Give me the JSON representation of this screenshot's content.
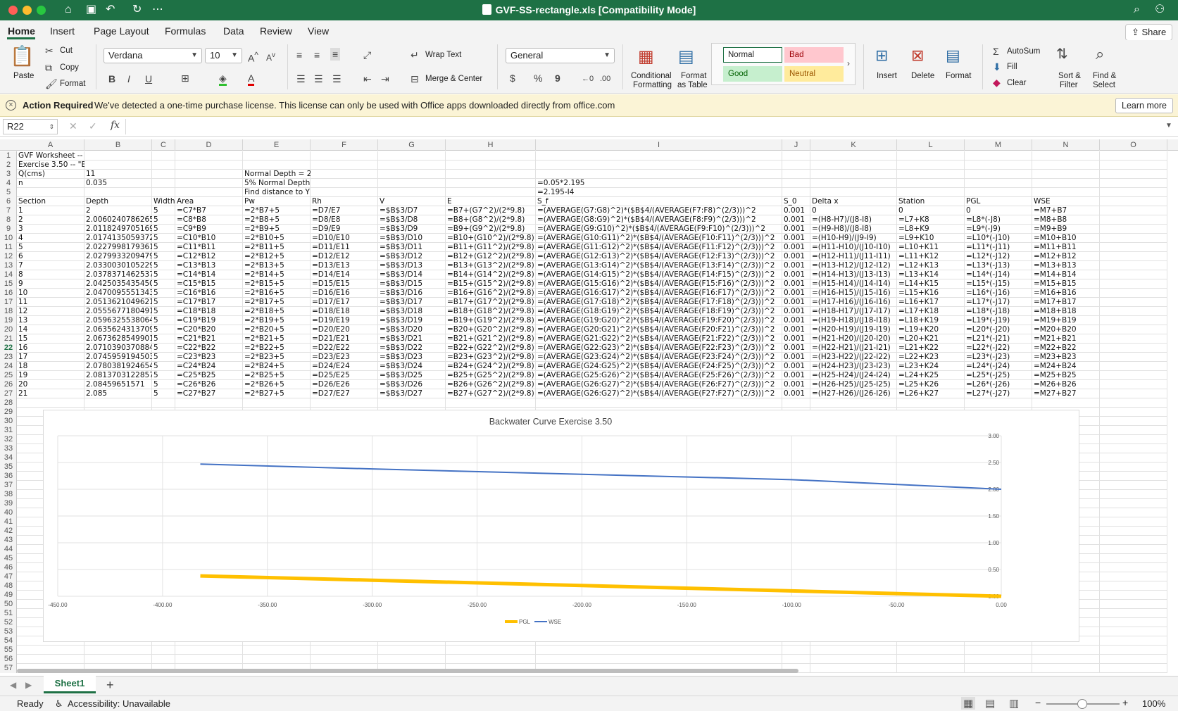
{
  "window": {
    "title": "GVF-SS-rectangle.xls  [Compatibility Mode]",
    "controls": [
      "close",
      "minimize",
      "zoom"
    ]
  },
  "menu": {
    "items": [
      "Home",
      "Insert",
      "Page Layout",
      "Formulas",
      "Data",
      "Review",
      "View"
    ],
    "active": "Home",
    "share_label": "Share"
  },
  "ribbon": {
    "paste": "Paste",
    "cut": "Cut",
    "copy": "Copy",
    "format_painter": "Format",
    "font_name": "Verdana",
    "font_size": "10",
    "wrap_text": "Wrap Text",
    "merge_center": "Merge & Center",
    "number_format": "General",
    "conditional_formatting": [
      "Conditional",
      "Formatting"
    ],
    "format_as_table": [
      "Format",
      "as Table"
    ],
    "styles": [
      {
        "label": "Normal",
        "bg": "#ffffff",
        "border": "#1e7145",
        "color": "#222222"
      },
      {
        "label": "Bad",
        "bg": "#ffc7ce",
        "border": "#ffc7ce",
        "color": "#9c0006"
      },
      {
        "label": "Good",
        "bg": "#c6efce",
        "border": "#c6efce",
        "color": "#006100"
      },
      {
        "label": "Neutral",
        "bg": "#ffeb9c",
        "border": "#ffeb9c",
        "color": "#9c5700"
      }
    ],
    "insert": "Insert",
    "delete": "Delete",
    "format": "Format",
    "autosum": "AutoSum",
    "fill": "Fill",
    "clear": "Clear",
    "sort_filter": [
      "Sort &",
      "Filter"
    ],
    "find_select": [
      "Find &",
      "Select"
    ]
  },
  "infobar": {
    "title": "Action Required",
    "message": "We've detected a one-time purchase license. This license can only be used with Office apps downloaded directly from office.com",
    "button": "Learn more"
  },
  "formula_bar": {
    "name_box": "R22",
    "fx": "fx",
    "formula": ""
  },
  "sheet": {
    "columns": [
      "A",
      "B",
      "C",
      "D",
      "E",
      "F",
      "G",
      "H",
      "I",
      "J",
      "K",
      "L",
      "M",
      "N",
      "O"
    ],
    "row_count": 57,
    "selected_row": 22,
    "rows": [
      {
        "r": 1,
        "c": {
          "A": "GVF Worksheet --"
        }
      },
      {
        "r": 2,
        "c": {
          "A": "Exercise 3.50 -- \"E"
        }
      },
      {
        "r": 3,
        "c": {
          "A": "Q(cms)",
          "B": "11",
          "E": "Normal Depth = 2"
        }
      },
      {
        "r": 4,
        "c": {
          "A": "n",
          "B": "0.035",
          "E": "5% Normal Depth",
          "I": "=0.05*2.195"
        }
      },
      {
        "r": 5,
        "c": {
          "E": "Find distance to Y",
          "I": "=2.195-I4"
        }
      },
      {
        "r": 6,
        "c": {
          "A": "Section",
          "B": "Depth",
          "C": "Width",
          "D": "Area",
          "E": "Pw",
          "F": "Rh",
          "G": "V",
          "H": "E",
          "I": "S_f",
          "J": "S_0",
          "K": "Delta x",
          "L": "Station",
          "M": "PGL",
          "N": "WSE"
        }
      },
      {
        "r": 7,
        "c": {
          "A": "1",
          "B": "2",
          "C": "5",
          "D": "=C7*B7",
          "E": "=2*B7+5",
          "F": "=D7/E7",
          "G": "=$B$3/D7",
          "H": "=B7+(G7^2)/(2*9.8)",
          "I": "=(AVERAGE(G7:G8)^2)*($B$4/(AVERAGE(F7:F8)^(2/3)))^2",
          "J": "0.001",
          "K": "0",
          "L": "0",
          "M": "0",
          "N": "=M7+B7"
        }
      },
      {
        "r": 8,
        "c": {
          "A": "2",
          "B": "2.0060240786265",
          "C": "5",
          "D": "=C8*B8",
          "E": "=2*B8+5",
          "F": "=D8/E8",
          "G": "=$B$3/D8",
          "H": "=B8+(G8^2)/(2*9.8)",
          "I": "=(AVERAGE(G8:G9)^2)*($B$4/(AVERAGE(F8:F9)^(2/3)))^2",
          "J": "0.001",
          "K": "=(H8-H7)/(J8-I8)",
          "L": "=L7+K8",
          "M": "=L8*(-J8)",
          "N": "=M8+B8"
        }
      },
      {
        "r": 9,
        "c": {
          "A": "3",
          "B": "2.0118249705169",
          "C": "5",
          "D": "=C9*B9",
          "E": "=2*B9+5",
          "F": "=D9/E9",
          "G": "=$B$3/D9",
          "H": "=B9+(G9^2)/(2*9.8)",
          "I": "=(AVERAGE(G9:G10)^2)*($B$4/(AVERAGE(F9:F10)^(2/3)))^2",
          "J": "0.001",
          "K": "=(H9-H8)/(J8-I8)",
          "L": "=L8+K9",
          "M": "=L9*(-J9)",
          "N": "=M9+B9"
        }
      },
      {
        "r": 10,
        "c": {
          "A": "4",
          "B": "2.0174135059372",
          "C": "5",
          "D": "=C10*B10",
          "E": "=2*B10+5",
          "F": "=D10/E10",
          "G": "=$B$3/D10",
          "H": "=B10+(G10^2)/(2*9.8)",
          "I": "=(AVERAGE(G10:G11)^2)*($B$4/(AVERAGE(F10:F11)^(2/3)))^2",
          "J": "0.001",
          "K": "=(H10-H9)/(J9-I9)",
          "L": "=L9+K10",
          "M": "=L10*(-J10)",
          "N": "=M10+B10"
        }
      },
      {
        "r": 11,
        "c": {
          "A": "5",
          "B": "2.0227998179361",
          "C": "5",
          "D": "=C11*B11",
          "E": "=2*B11+5",
          "F": "=D11/E11",
          "G": "=$B$3/D11",
          "H": "=B11+(G11^2)/(2*9.8)",
          "I": "=(AVERAGE(G11:G12)^2)*($B$4/(AVERAGE(F11:F12)^(2/3)))^2",
          "J": "0.001",
          "K": "=(H11-H10)/(J10-I10)",
          "L": "=L10+K11",
          "M": "=L11*(-J11)",
          "N": "=M11+B11"
        }
      },
      {
        "r": 12,
        "c": {
          "A": "6",
          "B": "2.0279933209479",
          "C": "5",
          "D": "=C12*B12",
          "E": "=2*B12+5",
          "F": "=D12/E12",
          "G": "=$B$3/D12",
          "H": "=B12+(G12^2)/(2*9.8)",
          "I": "=(AVERAGE(G12:G13)^2)*($B$4/(AVERAGE(F12:F13)^(2/3)))^2",
          "J": "0.001",
          "K": "=(H12-H11)/(J11-I11)",
          "L": "=L11+K12",
          "M": "=L12*(-J12)",
          "N": "=M12+B12"
        }
      },
      {
        "r": 13,
        "c": {
          "A": "7",
          "B": "2.0330030105229",
          "C": "5",
          "D": "=C13*B13",
          "E": "=2*B13+5",
          "F": "=D13/E13",
          "G": "=$B$3/D13",
          "H": "=B13+(G13^2)/(2*9.8)",
          "I": "=(AVERAGE(G13:G14)^2)*($B$4/(AVERAGE(F13:F14)^(2/3)))^2",
          "J": "0.001",
          "K": "=(H13-H12)/(J12-I12)",
          "L": "=L12+K13",
          "M": "=L13*(-J13)",
          "N": "=M13+B13"
        }
      },
      {
        "r": 14,
        "c": {
          "A": "8",
          "B": "2.0378371462537",
          "C": "5",
          "D": "=C14*B14",
          "E": "=2*B14+5",
          "F": "=D14/E14",
          "G": "=$B$3/D14",
          "H": "=B14+(G14^2)/(2*9.8)",
          "I": "=(AVERAGE(G14:G15)^2)*($B$4/(AVERAGE(F14:F15)^(2/3)))^2",
          "J": "0.001",
          "K": "=(H14-H13)/(J13-I13)",
          "L": "=L13+K14",
          "M": "=L14*(-J14)",
          "N": "=M14+B14"
        }
      },
      {
        "r": 15,
        "c": {
          "A": "9",
          "B": "2.0425035435450",
          "C": "5",
          "D": "=C15*B15",
          "E": "=2*B15+5",
          "F": "=D15/E15",
          "G": "=$B$3/D15",
          "H": "=B15+(G15^2)/(2*9.8)",
          "I": "=(AVERAGE(G15:G16)^2)*($B$4/(AVERAGE(F15:F16)^(2/3)))^2",
          "J": "0.001",
          "K": "=(H15-H14)/(J14-I14)",
          "L": "=L14+K15",
          "M": "=L15*(-J15)",
          "N": "=M15+B15"
        }
      },
      {
        "r": 16,
        "c": {
          "A": "10",
          "B": "2.0470095551343",
          "C": "5",
          "D": "=C16*B16",
          "E": "=2*B16+5",
          "F": "=D16/E16",
          "G": "=$B$3/D16",
          "H": "=B16+(G16^2)/(2*9.8)",
          "I": "=(AVERAGE(G16:G17)^2)*($B$4/(AVERAGE(F16:F17)^(2/3)))^2",
          "J": "0.001",
          "K": "=(H16-H15)/(J15-I16)",
          "L": "=L15+K16",
          "M": "=L16*(-J16)",
          "N": "=M16+B16"
        }
      },
      {
        "r": 17,
        "c": {
          "A": "11",
          "B": "2.0513621049621",
          "C": "5",
          "D": "=C17*B17",
          "E": "=2*B17+5",
          "F": "=D17/E17",
          "G": "=$B$3/D17",
          "H": "=B17+(G17^2)/(2*9.8)",
          "I": "=(AVERAGE(G17:G18)^2)*($B$4/(AVERAGE(F17:F18)^(2/3)))^2",
          "J": "0.001",
          "K": "=(H17-H16)/(J16-I16)",
          "L": "=L16+K17",
          "M": "=L17*(-J17)",
          "N": "=M17+B17"
        }
      },
      {
        "r": 18,
        "c": {
          "A": "12",
          "B": "2.0555677180491",
          "C": "5",
          "D": "=C18*B18",
          "E": "=2*B18+5",
          "F": "=D18/E18",
          "G": "=$B$3/D18",
          "H": "=B18+(G18^2)/(2*9.8)",
          "I": "=(AVERAGE(G18:G19)^2)*($B$4/(AVERAGE(F18:F19)^(2/3)))^2",
          "J": "0.001",
          "K": "=(H18-H17)/(J17-I17)",
          "L": "=L17+K18",
          "M": "=L18*(-J18)",
          "N": "=M18+B18"
        }
      },
      {
        "r": 19,
        "c": {
          "A": "13",
          "B": "2.0596325538064",
          "C": "5",
          "D": "=C19*B19",
          "E": "=2*B19+5",
          "F": "=D19/E19",
          "G": "=$B$3/D19",
          "H": "=B19+(G19^2)/(2*9.8)",
          "I": "=(AVERAGE(G19:G20)^2)*($B$4/(AVERAGE(F19:F20)^(2/3)))^2",
          "J": "0.001",
          "K": "=(H19-H18)/(J18-I18)",
          "L": "=L18+K19",
          "M": "=L19*(-J19)",
          "N": "=M19+B19"
        }
      },
      {
        "r": 20,
        "c": {
          "A": "14",
          "B": "2.0635624313709",
          "C": "5",
          "D": "=C20*B20",
          "E": "=2*B20+5",
          "F": "=D20/E20",
          "G": "=$B$3/D20",
          "H": "=B20+(G20^2)/(2*9.8)",
          "I": "=(AVERAGE(G20:G21)^2)*($B$4/(AVERAGE(F20:F21)^(2/3)))^2",
          "J": "0.001",
          "K": "=(H20-H19)/(J19-I19)",
          "L": "=L19+K20",
          "M": "=L20*(-J20)",
          "N": "=M20+B20"
        }
      },
      {
        "r": 21,
        "c": {
          "A": "15",
          "B": "2.0673628549901",
          "C": "5",
          "D": "=C21*B21",
          "E": "=2*B21+5",
          "F": "=D21/E21",
          "G": "=$B$3/D21",
          "H": "=B21+(G21^2)/(2*9.8)",
          "I": "=(AVERAGE(G21:G22)^2)*($B$4/(AVERAGE(F21:F22)^(2/3)))^2",
          "J": "0.001",
          "K": "=(H21-H20)/(J20-I20)",
          "L": "=L20+K21",
          "M": "=L21*(-J21)",
          "N": "=M21+B21"
        }
      },
      {
        "r": 22,
        "c": {
          "A": "16",
          "B": "2.0710390370884",
          "C": "5",
          "D": "=C22*B22",
          "E": "=2*B22+5",
          "F": "=D22/E22",
          "G": "=$B$3/D22",
          "H": "=B22+(G22^2)/(2*9.8)",
          "I": "=(AVERAGE(G22:G23)^2)*($B$4/(AVERAGE(F22:F23)^(2/3)))^2",
          "J": "0.001",
          "K": "=(H22-H21)/(J21-I21)",
          "L": "=L21+K22",
          "M": "=L22*(-J22)",
          "N": "=M22+B22"
        }
      },
      {
        "r": 23,
        "c": {
          "A": "17",
          "B": "2.0745959194503",
          "C": "5",
          "D": "=C23*B23",
          "E": "=2*B23+5",
          "F": "=D23/E23",
          "G": "=$B$3/D23",
          "H": "=B23+(G23^2)/(2*9.8)",
          "I": "=(AVERAGE(G23:G24)^2)*($B$4/(AVERAGE(F23:F24)^(2/3)))^2",
          "J": "0.001",
          "K": "=(H23-H22)/(J22-I22)",
          "L": "=L22+K23",
          "M": "=L23*(-J23)",
          "N": "=M23+B23"
        }
      },
      {
        "r": 24,
        "c": {
          "A": "18",
          "B": "2.0780381924654",
          "C": "5",
          "D": "=C24*B24",
          "E": "=2*B24+5",
          "F": "=D24/E24",
          "G": "=$B$3/D24",
          "H": "=B24+(G24^2)/(2*9.8)",
          "I": "=(AVERAGE(G24:G25)^2)*($B$4/(AVERAGE(F24:F25)^(2/3)))^2",
          "J": "0.001",
          "K": "=(H24-H23)/(J23-I23)",
          "L": "=L23+K24",
          "M": "=L24*(-J24)",
          "N": "=M24+B24"
        }
      },
      {
        "r": 25,
        "c": {
          "A": "19",
          "B": "2.0813703122857",
          "C": "5",
          "D": "=C25*B25",
          "E": "=2*B25+5",
          "F": "=D25/E25",
          "G": "=$B$3/D25",
          "H": "=B25+(G25^2)/(2*9.8)",
          "I": "=(AVERAGE(G25:G26)^2)*($B$4/(AVERAGE(F25:F26)^(2/3)))^2",
          "J": "0.001",
          "K": "=(H25-H24)/(J24-I24)",
          "L": "=L24+K25",
          "M": "=L25*(-J25)",
          "N": "=M25+B25"
        }
      },
      {
        "r": 26,
        "c": {
          "A": "20",
          "B": "2.08459651571",
          "C": "5",
          "D": "=C26*B26",
          "E": "=2*B26+5",
          "F": "=D26/E26",
          "G": "=$B$3/D26",
          "H": "=B26+(G26^2)/(2*9.8)",
          "I": "=(AVERAGE(G26:G27)^2)*($B$4/(AVERAGE(F26:F27)^(2/3)))^2",
          "J": "0.001",
          "K": "=(H26-H25)/(J25-I25)",
          "L": "=L25+K26",
          "M": "=L26*(-J26)",
          "N": "=M26+B26"
        }
      },
      {
        "r": 27,
        "c": {
          "A": "21",
          "B": "2.085",
          "C": "5",
          "D": "=C27*B27",
          "E": "=2*B27+5",
          "F": "=D27/E27",
          "G": "=$B$3/D27",
          "H": "=B27+(G27^2)/(2*9.8)",
          "I": "=(AVERAGE(G26:G27)^2)*($B$4/(AVERAGE(F27:F27)^(2/3)))^2",
          "J": "0.001",
          "K": "=(H27-H26)/(J26-I26)",
          "L": "=L26+K27",
          "M": "=L27*(-J27)",
          "N": "=M27+B27"
        }
      }
    ]
  },
  "chart_data": {
    "type": "line",
    "title": "Backwater Curve Exercise 3.50",
    "xlabel": "",
    "ylabel": "",
    "xlim": [
      -450,
      0
    ],
    "ylim": [
      0,
      3
    ],
    "x_ticks": [
      "-450.00",
      "-400.00",
      "-350.00",
      "-300.00",
      "-250.00",
      "-200.00",
      "-150.00",
      "-100.00",
      "-50.00",
      "0.00"
    ],
    "y_ticks": [
      "0.00",
      "0.50",
      "1.00",
      "1.50",
      "2.00",
      "2.50",
      "3.00"
    ],
    "grid": true,
    "y_axis_side": "right",
    "legend": "bottom",
    "series": [
      {
        "name": "PGL",
        "color": "#ffc000",
        "width": 5,
        "x": [
          -382,
          -300,
          -200,
          -100,
          0
        ],
        "y": [
          0.38,
          0.3,
          0.2,
          0.1,
          0.0
        ]
      },
      {
        "name": "WSE",
        "color": "#4472c4",
        "width": 2,
        "x": [
          -382,
          -300,
          -200,
          -100,
          0
        ],
        "y": [
          2.47,
          2.38,
          2.28,
          2.18,
          2.0
        ]
      }
    ]
  },
  "tabs": {
    "sheets": [
      "Sheet1"
    ],
    "active": "Sheet1",
    "add": "+"
  },
  "status": {
    "ready": "Ready",
    "accessibility": "Accessibility: Unavailable",
    "zoom": "100%"
  }
}
